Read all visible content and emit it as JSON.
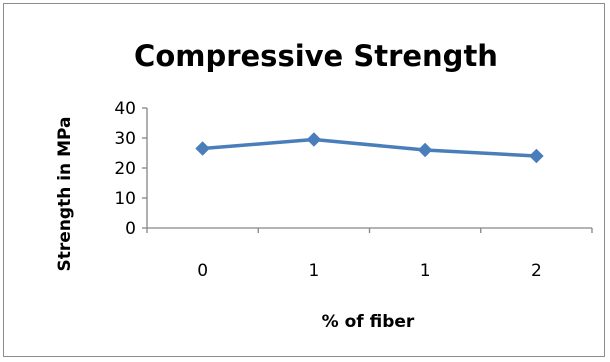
{
  "chart_data": {
    "type": "line",
    "title": "Compressive Strength",
    "xlabel": "% of fiber",
    "ylabel": "Strength in MPa",
    "categories": [
      "0",
      "1",
      "1",
      "2"
    ],
    "series": [
      {
        "values": [
          26.5,
          29.5,
          26,
          24
        ],
        "color": "#4a7ebb",
        "marker": "diamond"
      }
    ],
    "ylim": [
      0,
      40
    ],
    "yticks": [
      0,
      10,
      20,
      30,
      40
    ],
    "yticks_labels": [
      "0",
      "10",
      "20",
      "30",
      "40"
    ],
    "grid": false,
    "legend": "none"
  }
}
